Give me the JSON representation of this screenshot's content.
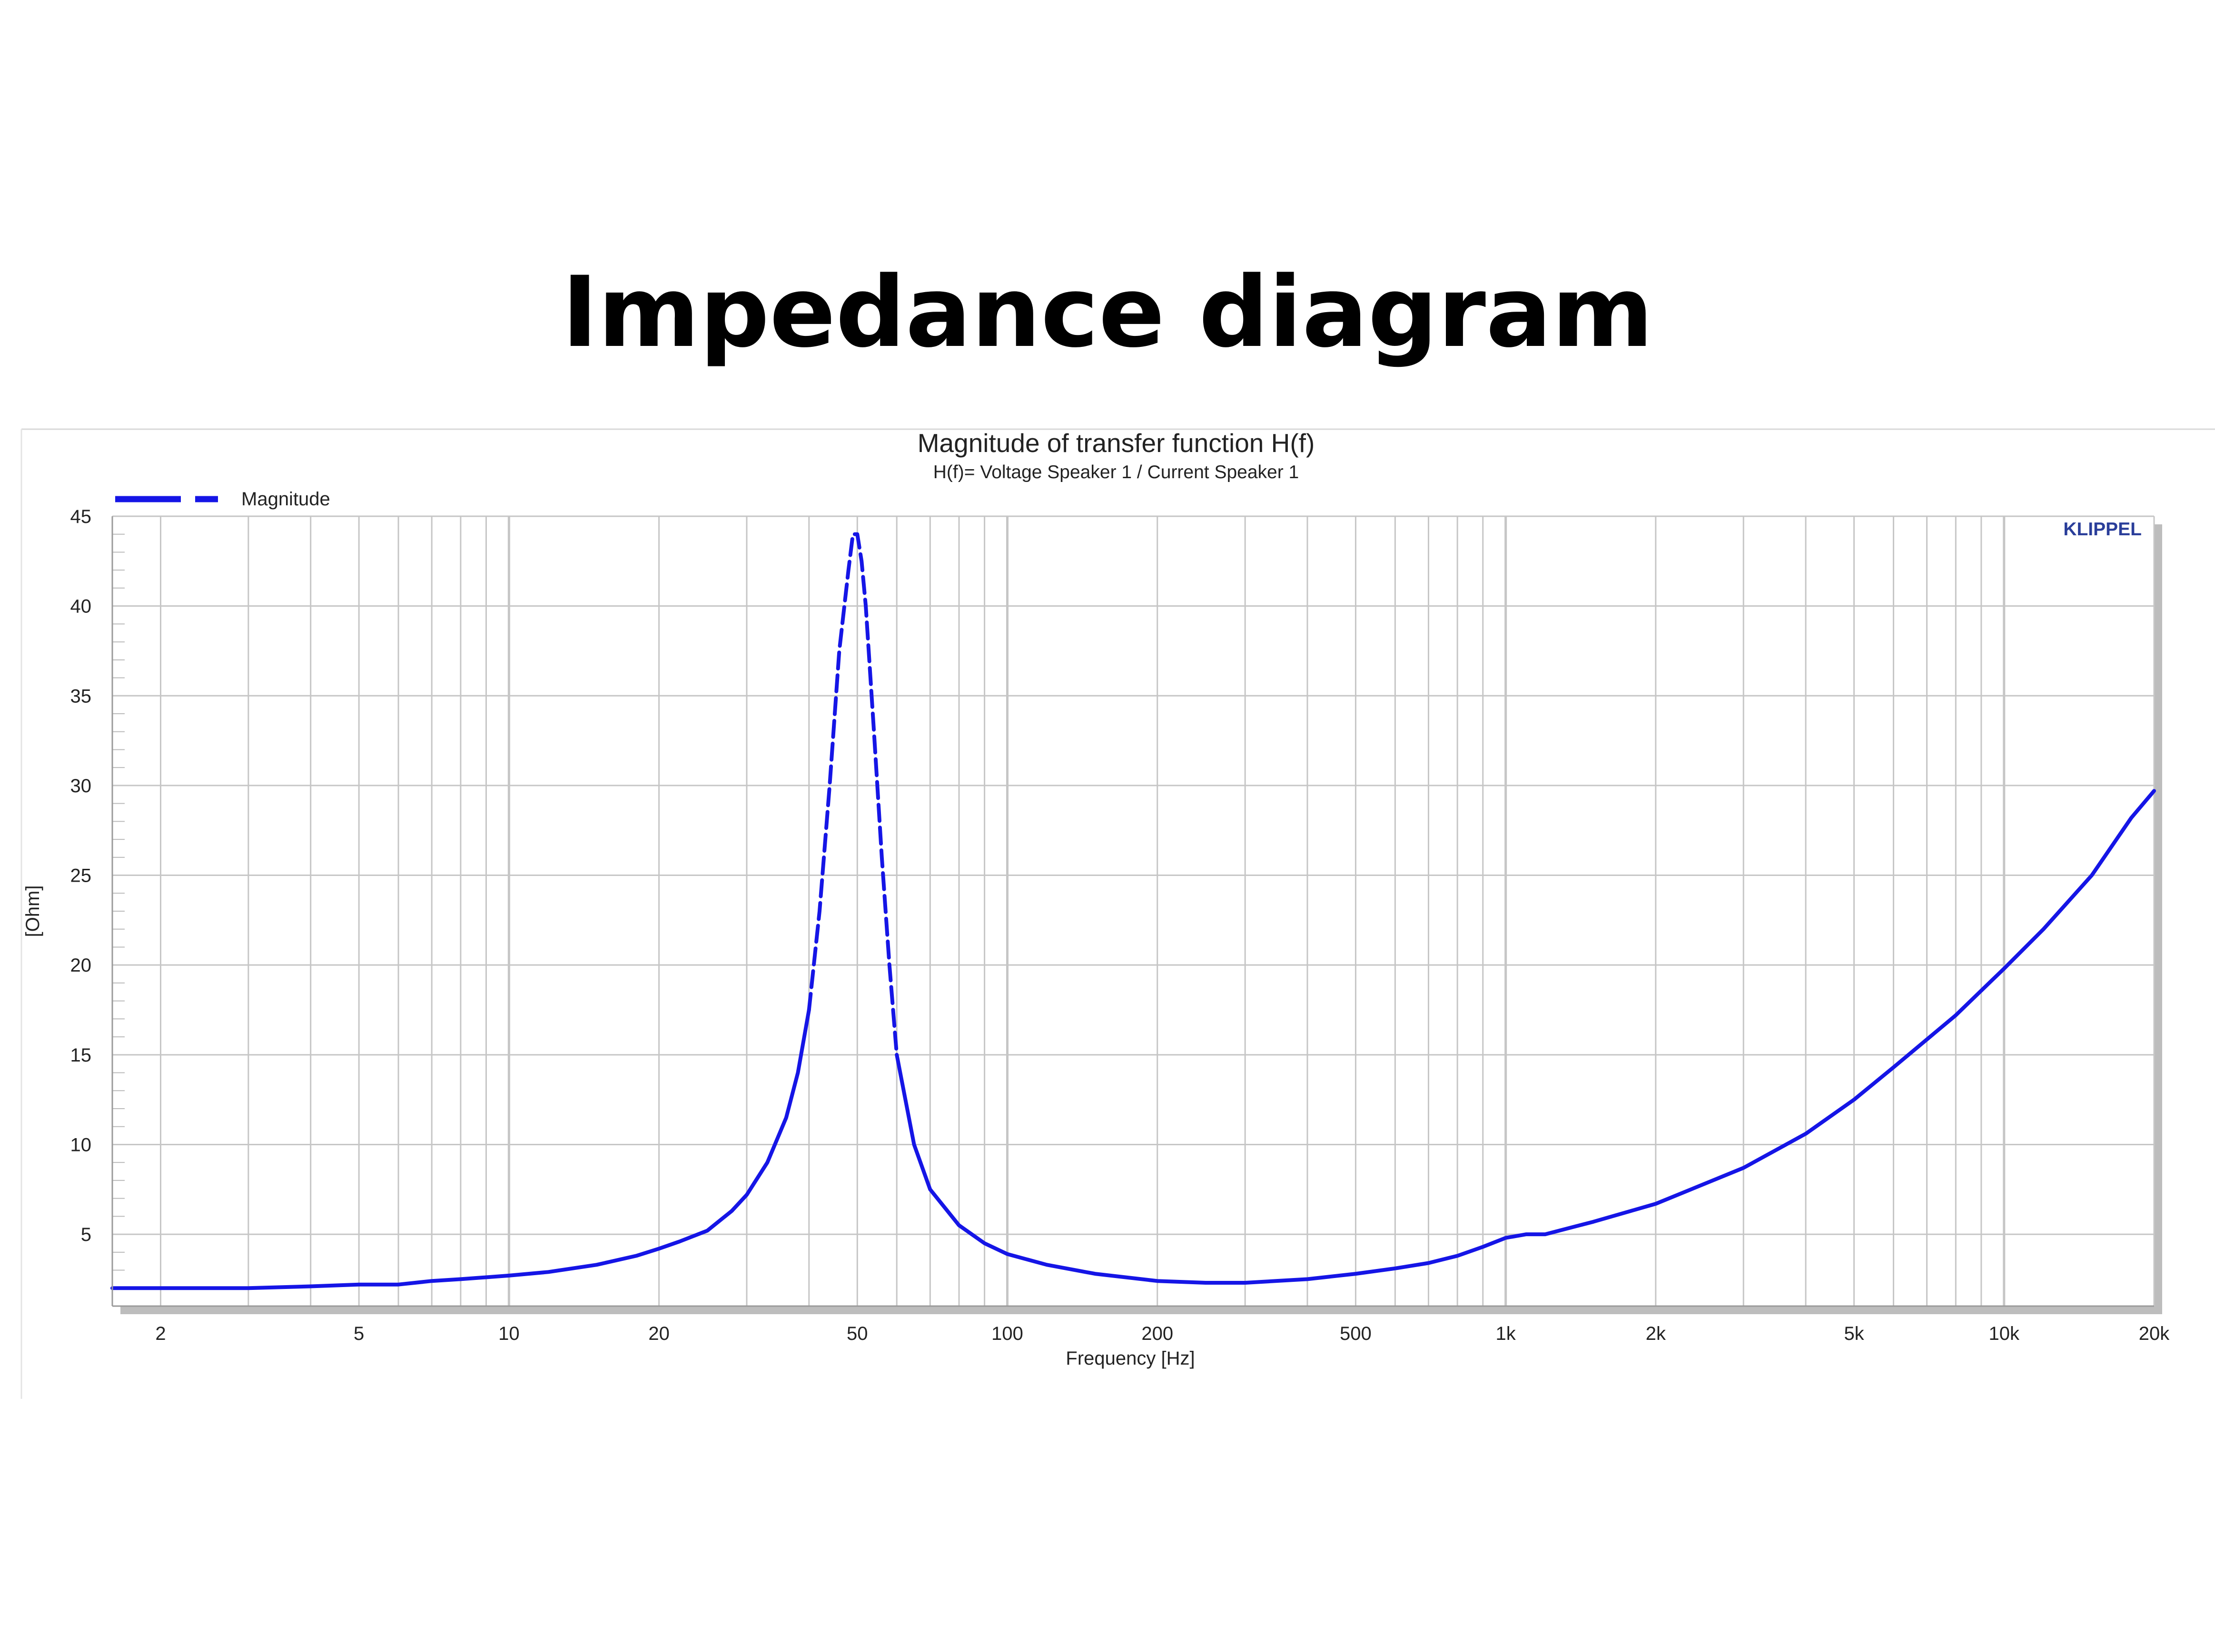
{
  "heading": "Impedance diagram",
  "colors": {
    "curve": "#1515e6",
    "grid": "#c6c6c6",
    "brand": "#2a3e9a",
    "shadow": "#bdbdbd"
  },
  "chart_data": {
    "type": "line",
    "title": "Magnitude of transfer function H(f)",
    "subtitle": "H(f)= Voltage Speaker 1 / Current Speaker 1",
    "xlabel": "Frequency [Hz]",
    "ylabel": "[Ohm]",
    "brand": "KLIPPEL",
    "x_scale": "log",
    "xlim": [
      1.6,
      20000
    ],
    "ylim": [
      1,
      45
    ],
    "legend": {
      "position": "top-left",
      "entries": [
        "Magnitude"
      ]
    },
    "x_ticks": [
      2,
      5,
      10,
      20,
      50,
      100,
      200,
      500,
      1000,
      2000,
      5000,
      10000,
      20000
    ],
    "x_tick_labels": [
      "2",
      "5",
      "10",
      "20",
      "50",
      "100",
      "200",
      "500",
      "1k",
      "2k",
      "5k",
      "10k",
      "20k"
    ],
    "y_ticks": [
      5,
      10,
      15,
      20,
      25,
      30,
      35,
      40,
      45
    ],
    "y_tick_labels": [
      "5",
      "10",
      "15",
      "20",
      "25",
      "30",
      "35",
      "40",
      "45"
    ],
    "grid": true,
    "series": [
      {
        "name": "Magnitude",
        "x": [
          1.6,
          2,
          3,
          4,
          5,
          6,
          7,
          8,
          10,
          12,
          15,
          18,
          20,
          22,
          25,
          28,
          30,
          33,
          36,
          38,
          40,
          42,
          44,
          46,
          48,
          49,
          50,
          51,
          52,
          54,
          56,
          58,
          60,
          65,
          70,
          80,
          90,
          100,
          120,
          150,
          200,
          250,
          300,
          400,
          500,
          600,
          700,
          800,
          900,
          1000,
          1100,
          1200,
          1500,
          2000,
          3000,
          4000,
          5000,
          6000,
          8000,
          10000,
          12000,
          15000,
          18000,
          20000
        ],
        "y": [
          2.0,
          2.0,
          2.0,
          2.1,
          2.2,
          2.2,
          2.4,
          2.5,
          2.7,
          2.9,
          3.3,
          3.8,
          4.2,
          4.6,
          5.2,
          6.3,
          7.2,
          9.0,
          11.5,
          14.0,
          17.5,
          23.0,
          30.0,
          37.5,
          42.0,
          44.0,
          44.0,
          42.5,
          40.0,
          33.0,
          26.0,
          20.0,
          15.0,
          10.0,
          7.5,
          5.5,
          4.5,
          3.9,
          3.3,
          2.8,
          2.4,
          2.3,
          2.3,
          2.5,
          2.8,
          3.1,
          3.4,
          3.8,
          4.3,
          4.8,
          5.0,
          5.0,
          5.7,
          6.7,
          8.7,
          10.6,
          12.5,
          14.3,
          17.2,
          19.8,
          22.0,
          25.0,
          28.2,
          29.7
        ]
      }
    ]
  }
}
